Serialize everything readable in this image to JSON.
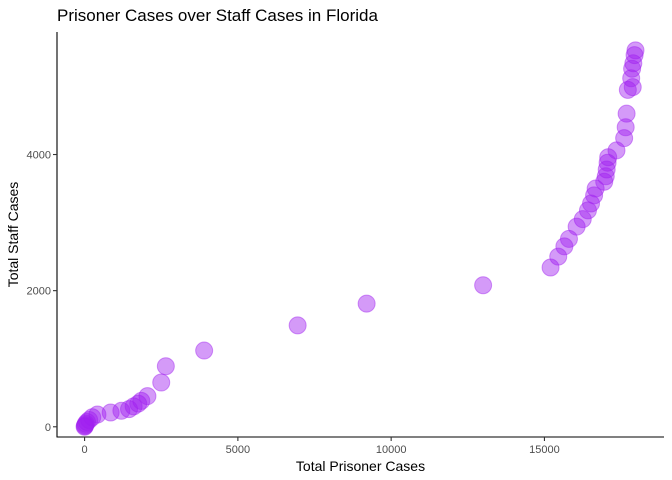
{
  "chart_data": {
    "type": "scatter",
    "title": "Prisoner Cases over Staff Cases in Florida",
    "xlabel": "Total Prisoner Cases",
    "ylabel": "Total Staff Cases",
    "xlim": [
      -900,
      18900
    ],
    "ylim": [
      -150,
      5800
    ],
    "x_ticks": [
      0,
      5000,
      10000,
      15000
    ],
    "x_tick_labels": [
      "0",
      "5000",
      "10000",
      "15000"
    ],
    "y_ticks": [
      0,
      2000,
      4000
    ],
    "y_tick_labels": [
      "0",
      "2000",
      "4000"
    ],
    "grid": false,
    "point_color": "#A020F0",
    "point_opacity": 0.45,
    "points": [
      {
        "x": 0,
        "y": 0
      },
      {
        "x": 10,
        "y": 10
      },
      {
        "x": 20,
        "y": 25
      },
      {
        "x": 40,
        "y": 45
      },
      {
        "x": 80,
        "y": 70
      },
      {
        "x": 150,
        "y": 100
      },
      {
        "x": 250,
        "y": 140
      },
      {
        "x": 420,
        "y": 180
      },
      {
        "x": 850,
        "y": 210
      },
      {
        "x": 1200,
        "y": 235
      },
      {
        "x": 1450,
        "y": 260
      },
      {
        "x": 1600,
        "y": 300
      },
      {
        "x": 1750,
        "y": 340
      },
      {
        "x": 1850,
        "y": 380
      },
      {
        "x": 2050,
        "y": 450
      },
      {
        "x": 2500,
        "y": 650
      },
      {
        "x": 2650,
        "y": 890
      },
      {
        "x": 3900,
        "y": 1120
      },
      {
        "x": 6950,
        "y": 1490
      },
      {
        "x": 9200,
        "y": 1810
      },
      {
        "x": 13000,
        "y": 2080
      },
      {
        "x": 15200,
        "y": 2340
      },
      {
        "x": 15450,
        "y": 2500
      },
      {
        "x": 15650,
        "y": 2650
      },
      {
        "x": 15800,
        "y": 2760
      },
      {
        "x": 16050,
        "y": 2940
      },
      {
        "x": 16250,
        "y": 3050
      },
      {
        "x": 16420,
        "y": 3180
      },
      {
        "x": 16520,
        "y": 3280
      },
      {
        "x": 16620,
        "y": 3400
      },
      {
        "x": 16670,
        "y": 3500
      },
      {
        "x": 16950,
        "y": 3600
      },
      {
        "x": 17000,
        "y": 3680
      },
      {
        "x": 17030,
        "y": 3780
      },
      {
        "x": 17060,
        "y": 3880
      },
      {
        "x": 17080,
        "y": 3960
      },
      {
        "x": 17350,
        "y": 4060
      },
      {
        "x": 17600,
        "y": 4240
      },
      {
        "x": 17650,
        "y": 4400
      },
      {
        "x": 17680,
        "y": 4600
      },
      {
        "x": 17720,
        "y": 4950
      },
      {
        "x": 17880,
        "y": 4990
      },
      {
        "x": 17830,
        "y": 5120
      },
      {
        "x": 17860,
        "y": 5260
      },
      {
        "x": 17900,
        "y": 5340
      },
      {
        "x": 17940,
        "y": 5460
      },
      {
        "x": 17970,
        "y": 5530
      }
    ]
  }
}
